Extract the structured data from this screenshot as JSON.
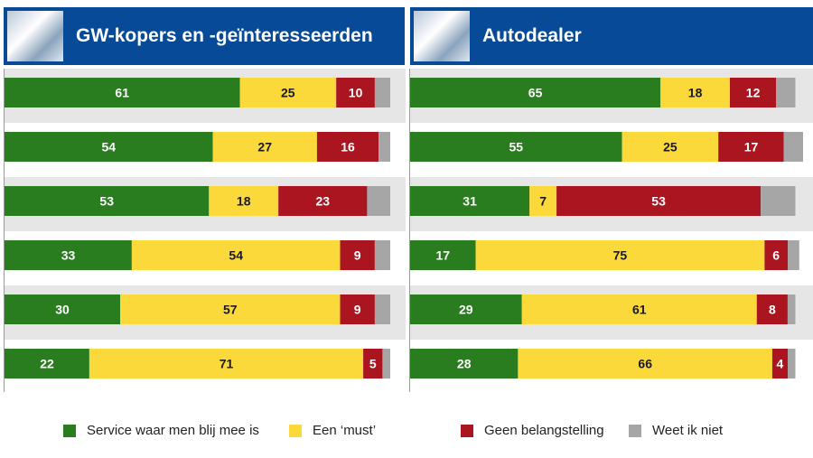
{
  "panels": {
    "left": {
      "title": "GW-kopers en -geïnteresseerden",
      "image": "car-buyer-photo"
    },
    "right": {
      "title": "Autodealer",
      "image": "dealer-meeting-photo"
    }
  },
  "colors": {
    "service": "#2a7d1e",
    "must": "#fbd93a",
    "geen": "#ab1520",
    "weet": "#a6a6a6",
    "header": "#074a97",
    "band": "#e6e6e6"
  },
  "legend": [
    {
      "label": "Service waar men blij mee is",
      "color": "#2a7d1e"
    },
    {
      "label": "Een ‘must’",
      "color": "#fbd93a"
    },
    {
      "label": "Geen belangstelling",
      "color": "#ab1520"
    },
    {
      "label": "Weet ik niet",
      "color": "#a6a6a6"
    }
  ],
  "chart_data": [
    {
      "type": "bar",
      "stacked": true,
      "orientation": "horizontal",
      "title": "GW-kopers en -geïnteresseerden",
      "xlim": [
        0,
        100
      ],
      "series": [
        {
          "name": "Service waar men blij mee is",
          "values": [
            61,
            54,
            53,
            33,
            30,
            22
          ]
        },
        {
          "name": "Een ‘must’",
          "values": [
            25,
            27,
            18,
            54,
            57,
            71
          ]
        },
        {
          "name": "Geen belangstelling",
          "values": [
            10,
            16,
            23,
            9,
            9,
            5
          ]
        },
        {
          "name": "Weet ik niet",
          "values": [
            4,
            3,
            6,
            4,
            4,
            2
          ]
        }
      ]
    },
    {
      "type": "bar",
      "stacked": true,
      "orientation": "horizontal",
      "title": "Autodealer",
      "xlim": [
        0,
        100
      ],
      "series": [
        {
          "name": "Service waar men blij mee is",
          "values": [
            65,
            55,
            31,
            17,
            29,
            28
          ]
        },
        {
          "name": "Een ‘must’",
          "values": [
            18,
            25,
            7,
            75,
            61,
            66
          ]
        },
        {
          "name": "Geen belangstelling",
          "values": [
            12,
            17,
            53,
            6,
            8,
            4
          ]
        },
        {
          "name": "Weet ik niet",
          "values": [
            5,
            5,
            9,
            3,
            2,
            2
          ]
        }
      ]
    }
  ]
}
